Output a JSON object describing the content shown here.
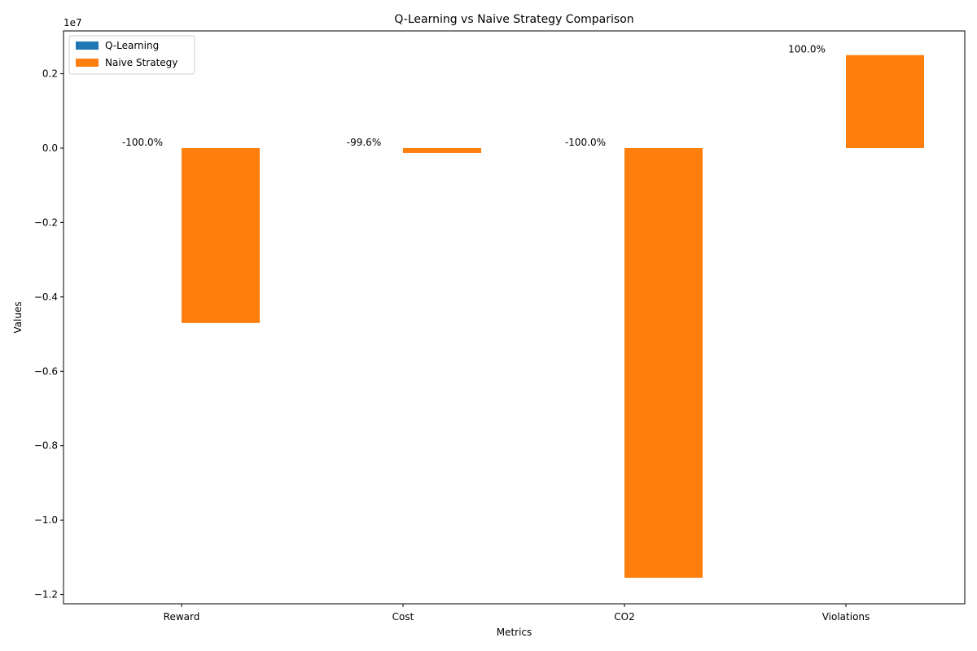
{
  "chart_data": {
    "type": "bar",
    "title": "Q-Learning vs Naive Strategy Comparison",
    "xlabel": "Metrics",
    "ylabel": "Values",
    "y_scale_label": "1e7",
    "categories": [
      "Reward",
      "Cost",
      "CO2",
      "Violations"
    ],
    "series": [
      {
        "name": "Q-Learning",
        "color": "#1f77b4",
        "values": [
          0,
          0,
          0,
          0
        ]
      },
      {
        "name": "Naive Strategy",
        "color": "#ff7f0e",
        "values": [
          -4700000,
          -130000,
          -11550000,
          2500000
        ]
      }
    ],
    "data_labels": [
      "-100.0%",
      "-99.6%",
      "-100.0%",
      "100.0%"
    ],
    "ylim": [
      -12250000,
      3150000
    ],
    "yticks": [
      -12000000,
      -10000000,
      -8000000,
      -6000000,
      -4000000,
      -2000000,
      0,
      2000000
    ],
    "ytick_labels": [
      "−1.2",
      "−1.0",
      "−0.8",
      "−0.6",
      "−0.4",
      "−0.2",
      "0.0",
      "0.2"
    ],
    "legend_position": "top-left",
    "grid": false
  }
}
